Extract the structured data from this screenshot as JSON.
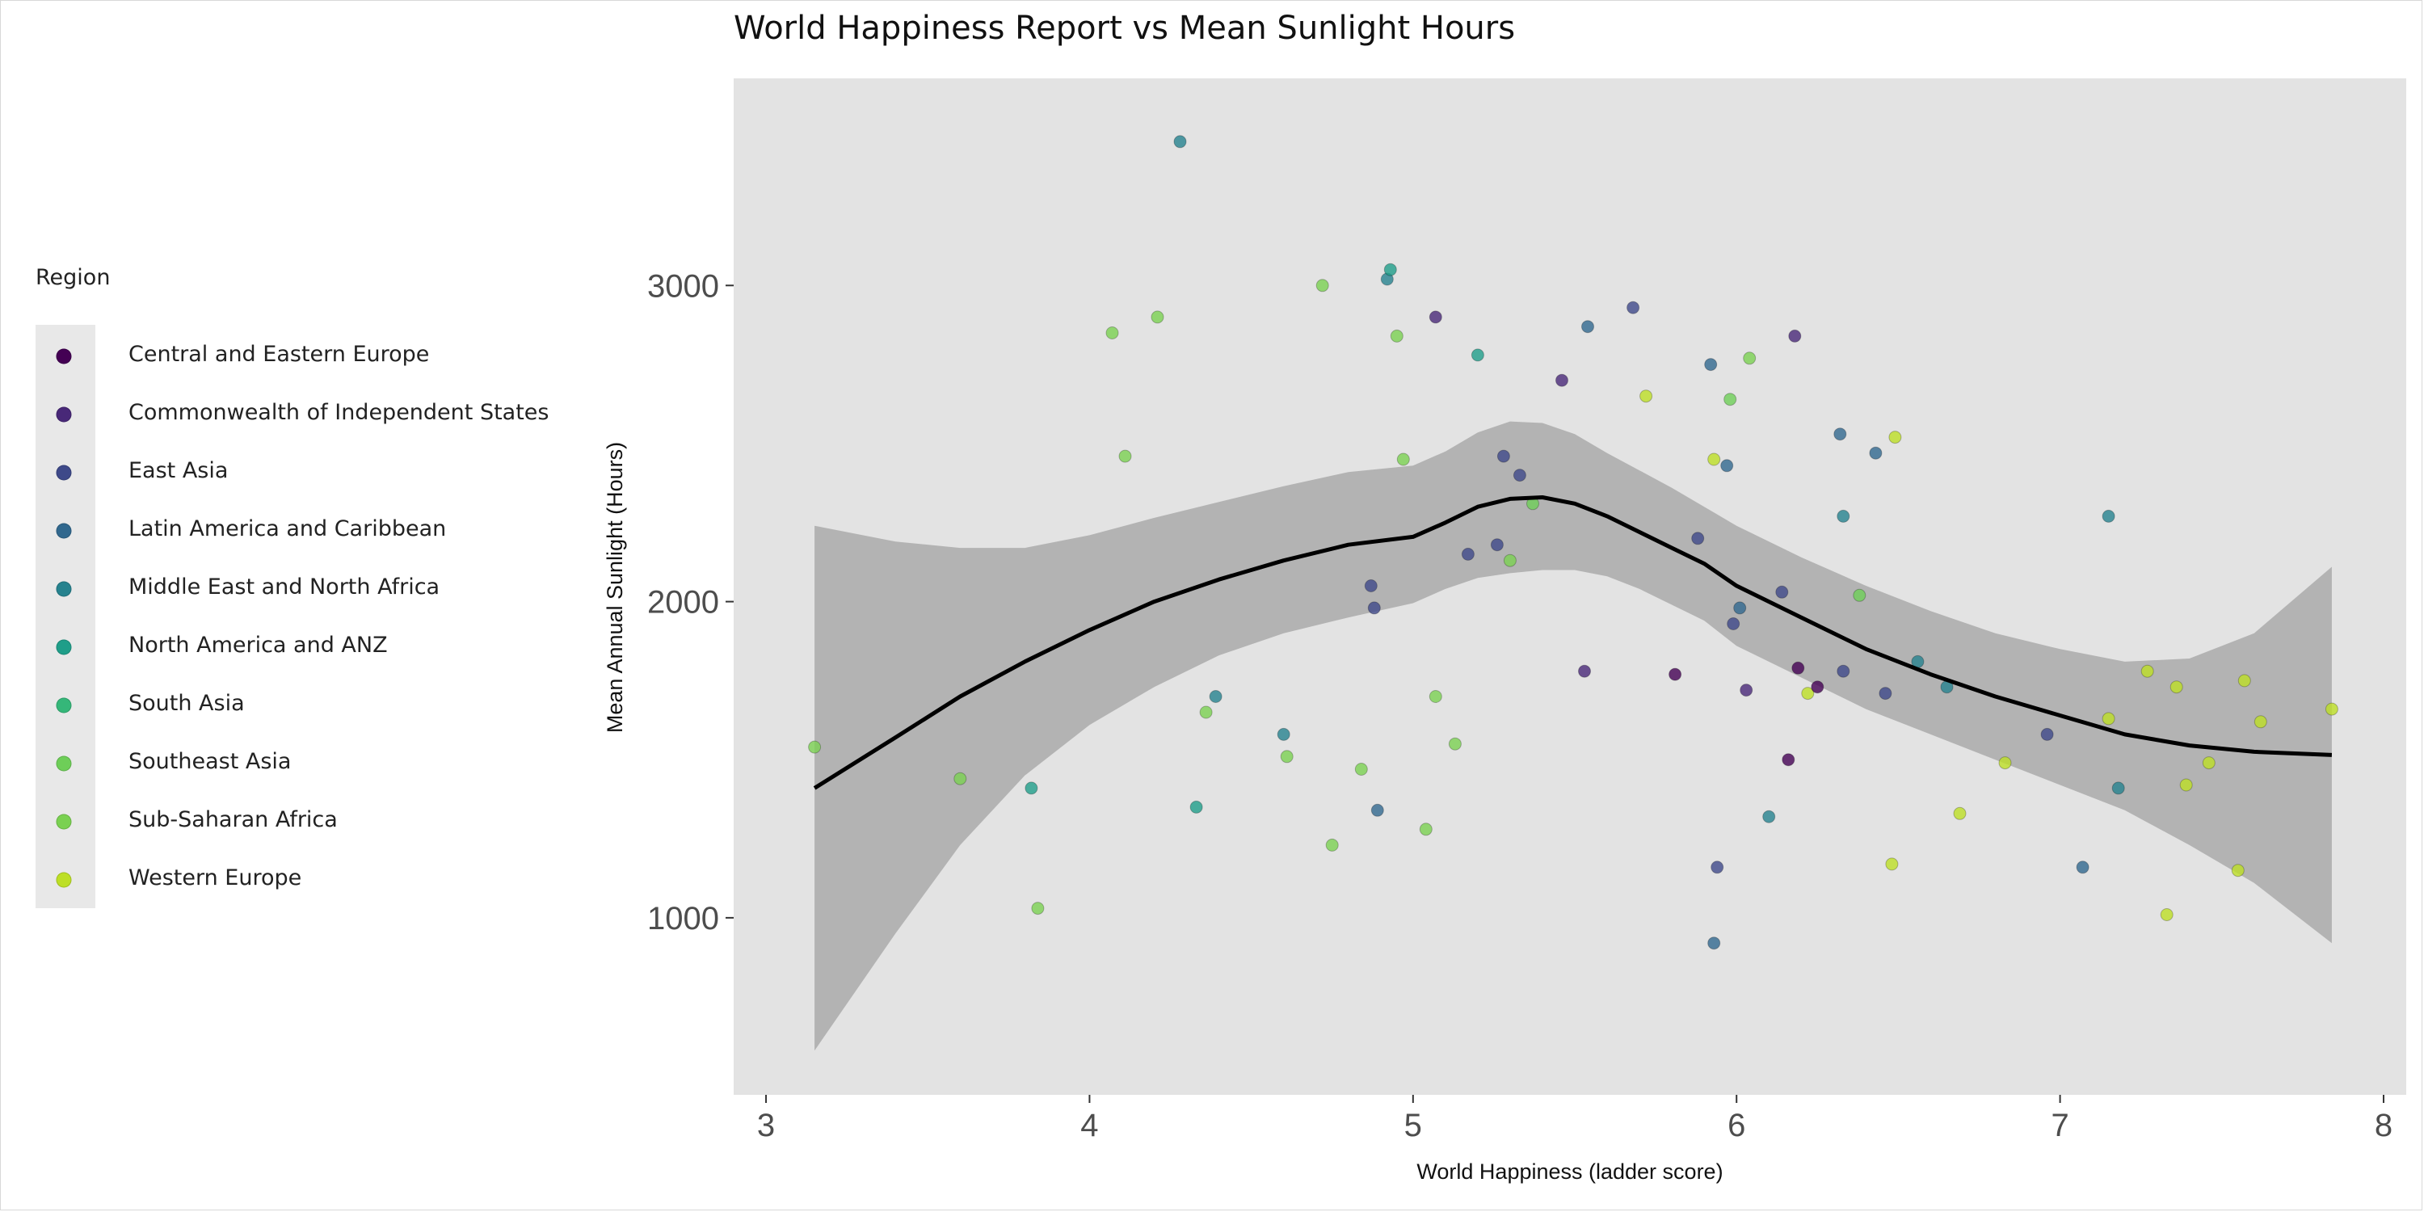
{
  "chart_data": {
    "type": "scatter",
    "title": "World Happiness Report vs Mean Sunlight Hours",
    "xlabel": "World Happiness (ladder score)",
    "ylabel": "Mean Annual Sunlight (Hours)",
    "xlim": [
      2.9,
      8.07
    ],
    "ylim": [
      440,
      3655
    ],
    "x_ticks": [
      3,
      4,
      5,
      6,
      7,
      8
    ],
    "y_ticks": [
      1000,
      2000,
      3000
    ],
    "grid": false,
    "legend": {
      "title": "Region",
      "position": "left",
      "entries": [
        "Central and Eastern Europe",
        "Commonwealth of Independent States",
        "East Asia",
        "Latin America and Caribbean",
        "Middle East and North Africa",
        "North America and ANZ",
        "South Asia",
        "Southeast Asia",
        "Sub-Saharan Africa",
        "Western Europe"
      ]
    },
    "colors": {
      "Central and Eastern Europe": "#440154",
      "Commonwealth of Independent States": "#482878",
      "East Asia": "#3e4989",
      "Latin America and Caribbean": "#31688e",
      "Middle East and North Africa": "#26828e",
      "North America and ANZ": "#1f9e89",
      "South Asia": "#35b779",
      "Southeast Asia": "#6ece58",
      "Sub-Saharan Africa": "#7ad151",
      "Western Europe": "#bddf26"
    },
    "panel_color": "#e3e3e3",
    "band_color": "#adadad",
    "smooth": {
      "x": [
        3.15,
        3.4,
        3.6,
        3.8,
        4.0,
        4.2,
        4.4,
        4.6,
        4.8,
        5.0,
        5.1,
        5.2,
        5.3,
        5.4,
        5.5,
        5.6,
        5.7,
        5.8,
        5.9,
        6.0,
        6.2,
        6.4,
        6.6,
        6.8,
        7.0,
        7.2,
        7.4,
        7.6,
        7.84
      ],
      "y": [
        1410,
        1570,
        1700,
        1810,
        1910,
        2000,
        2070,
        2130,
        2180,
        2205,
        2250,
        2300,
        2325,
        2330,
        2310,
        2270,
        2220,
        2170,
        2120,
        2050,
        1950,
        1850,
        1770,
        1700,
        1640,
        1580,
        1545,
        1525,
        1515
      ],
      "lower": [
        580,
        950,
        1230,
        1450,
        1610,
        1730,
        1830,
        1900,
        1950,
        1995,
        2040,
        2075,
        2090,
        2100,
        2100,
        2080,
        2040,
        1990,
        1940,
        1860,
        1760,
        1660,
        1580,
        1500,
        1420,
        1340,
        1230,
        1110,
        920
      ],
      "upper": [
        2240,
        2190,
        2170,
        2170,
        2210,
        2265,
        2315,
        2365,
        2410,
        2430,
        2475,
        2535,
        2570,
        2565,
        2530,
        2470,
        2415,
        2360,
        2300,
        2240,
        2140,
        2050,
        1970,
        1900,
        1850,
        1810,
        1820,
        1900,
        2110
      ]
    },
    "points": [
      {
        "x": 3.15,
        "y": 1540,
        "region": "Sub-Saharan Africa"
      },
      {
        "x": 3.6,
        "y": 1440,
        "region": "Sub-Saharan Africa"
      },
      {
        "x": 3.82,
        "y": 1410,
        "region": "North America and ANZ"
      },
      {
        "x": 3.84,
        "y": 1030,
        "region": "Sub-Saharan Africa"
      },
      {
        "x": 4.07,
        "y": 2850,
        "region": "Sub-Saharan Africa"
      },
      {
        "x": 4.11,
        "y": 2460,
        "region": "Sub-Saharan Africa"
      },
      {
        "x": 4.21,
        "y": 2900,
        "region": "Sub-Saharan Africa"
      },
      {
        "x": 4.28,
        "y": 3455,
        "region": "Middle East and North Africa"
      },
      {
        "x": 4.33,
        "y": 1350,
        "region": "North America and ANZ"
      },
      {
        "x": 4.36,
        "y": 1650,
        "region": "Sub-Saharan Africa"
      },
      {
        "x": 4.39,
        "y": 1700,
        "region": "Middle East and North Africa"
      },
      {
        "x": 4.6,
        "y": 1580,
        "region": "Middle East and North Africa"
      },
      {
        "x": 4.61,
        "y": 1510,
        "region": "Sub-Saharan Africa"
      },
      {
        "x": 4.72,
        "y": 3000,
        "region": "Sub-Saharan Africa"
      },
      {
        "x": 4.75,
        "y": 1230,
        "region": "Sub-Saharan Africa"
      },
      {
        "x": 4.84,
        "y": 1470,
        "region": "Sub-Saharan Africa"
      },
      {
        "x": 4.87,
        "y": 2050,
        "region": "East Asia"
      },
      {
        "x": 4.88,
        "y": 1980,
        "region": "East Asia"
      },
      {
        "x": 4.89,
        "y": 1340,
        "region": "Latin America and Caribbean"
      },
      {
        "x": 4.92,
        "y": 3020,
        "region": "Middle East and North Africa"
      },
      {
        "x": 4.93,
        "y": 3050,
        "region": "North America and ANZ"
      },
      {
        "x": 4.95,
        "y": 2840,
        "region": "Sub-Saharan Africa"
      },
      {
        "x": 4.97,
        "y": 2450,
        "region": "Sub-Saharan Africa"
      },
      {
        "x": 5.04,
        "y": 1280,
        "region": "Sub-Saharan Africa"
      },
      {
        "x": 5.07,
        "y": 2900,
        "region": "Commonwealth of Independent States"
      },
      {
        "x": 5.07,
        "y": 1700,
        "region": "Sub-Saharan Africa"
      },
      {
        "x": 5.13,
        "y": 1550,
        "region": "Sub-Saharan Africa"
      },
      {
        "x": 5.17,
        "y": 2150,
        "region": "East Asia"
      },
      {
        "x": 5.2,
        "y": 2780,
        "region": "North America and ANZ"
      },
      {
        "x": 5.26,
        "y": 2180,
        "region": "East Asia"
      },
      {
        "x": 5.28,
        "y": 2460,
        "region": "East Asia"
      },
      {
        "x": 5.3,
        "y": 2130,
        "region": "Sub-Saharan Africa"
      },
      {
        "x": 5.33,
        "y": 2400,
        "region": "East Asia"
      },
      {
        "x": 5.37,
        "y": 2310,
        "region": "Southeast Asia"
      },
      {
        "x": 5.46,
        "y": 2700,
        "region": "Commonwealth of Independent States"
      },
      {
        "x": 5.53,
        "y": 1780,
        "region": "Commonwealth of Independent States"
      },
      {
        "x": 5.54,
        "y": 2870,
        "region": "Latin America and Caribbean"
      },
      {
        "x": 5.68,
        "y": 2930,
        "region": "East Asia"
      },
      {
        "x": 5.72,
        "y": 2650,
        "region": "Western Europe"
      },
      {
        "x": 5.81,
        "y": 1770,
        "region": "Central and Eastern Europe"
      },
      {
        "x": 5.88,
        "y": 2200,
        "region": "East Asia"
      },
      {
        "x": 5.92,
        "y": 2750,
        "region": "Latin America and Caribbean"
      },
      {
        "x": 5.93,
        "y": 2450,
        "region": "Western Europe"
      },
      {
        "x": 5.93,
        "y": 920,
        "region": "Latin America and Caribbean"
      },
      {
        "x": 5.94,
        "y": 1160,
        "region": "East Asia"
      },
      {
        "x": 5.97,
        "y": 2430,
        "region": "Latin America and Caribbean"
      },
      {
        "x": 5.98,
        "y": 2640,
        "region": "Southeast Asia"
      },
      {
        "x": 5.99,
        "y": 1930,
        "region": "East Asia"
      },
      {
        "x": 6.01,
        "y": 1980,
        "region": "Latin America and Caribbean"
      },
      {
        "x": 6.03,
        "y": 1720,
        "region": "Commonwealth of Independent States"
      },
      {
        "x": 6.04,
        "y": 2770,
        "region": "Sub-Saharan Africa"
      },
      {
        "x": 6.1,
        "y": 1320,
        "region": "Middle East and North Africa"
      },
      {
        "x": 6.14,
        "y": 2030,
        "region": "East Asia"
      },
      {
        "x": 6.16,
        "y": 1500,
        "region": "Central and Eastern Europe"
      },
      {
        "x": 6.18,
        "y": 2840,
        "region": "Commonwealth of Independent States"
      },
      {
        "x": 6.19,
        "y": 1790,
        "region": "Central and Eastern Europe"
      },
      {
        "x": 6.22,
        "y": 1710,
        "region": "Western Europe"
      },
      {
        "x": 6.25,
        "y": 1730,
        "region": "Central and Eastern Europe"
      },
      {
        "x": 6.32,
        "y": 2530,
        "region": "Latin America and Caribbean"
      },
      {
        "x": 6.33,
        "y": 2270,
        "region": "Middle East and North Africa"
      },
      {
        "x": 6.33,
        "y": 1780,
        "region": "East Asia"
      },
      {
        "x": 6.38,
        "y": 2020,
        "region": "Southeast Asia"
      },
      {
        "x": 6.43,
        "y": 2470,
        "region": "Latin America and Caribbean"
      },
      {
        "x": 6.46,
        "y": 1710,
        "region": "East Asia"
      },
      {
        "x": 6.48,
        "y": 1170,
        "region": "Western Europe"
      },
      {
        "x": 6.49,
        "y": 2520,
        "region": "Western Europe"
      },
      {
        "x": 6.56,
        "y": 1810,
        "region": "Middle East and North Africa"
      },
      {
        "x": 6.65,
        "y": 1730,
        "region": "Middle East and North Africa"
      },
      {
        "x": 6.69,
        "y": 1330,
        "region": "Western Europe"
      },
      {
        "x": 6.83,
        "y": 1490,
        "region": "Western Europe"
      },
      {
        "x": 6.96,
        "y": 1580,
        "region": "East Asia"
      },
      {
        "x": 7.07,
        "y": 1160,
        "region": "Latin America and Caribbean"
      },
      {
        "x": 7.15,
        "y": 2270,
        "region": "Middle East and North Africa"
      },
      {
        "x": 7.15,
        "y": 1630,
        "region": "Western Europe"
      },
      {
        "x": 7.18,
        "y": 1410,
        "region": "Middle East and North Africa"
      },
      {
        "x": 7.27,
        "y": 1780,
        "region": "Western Europe"
      },
      {
        "x": 7.33,
        "y": 1010,
        "region": "Western Europe"
      },
      {
        "x": 7.36,
        "y": 1730,
        "region": "Western Europe"
      },
      {
        "x": 7.39,
        "y": 1420,
        "region": "Western Europe"
      },
      {
        "x": 7.46,
        "y": 1490,
        "region": "Western Europe"
      },
      {
        "x": 7.55,
        "y": 1150,
        "region": "Western Europe"
      },
      {
        "x": 7.57,
        "y": 1750,
        "region": "Western Europe"
      },
      {
        "x": 7.62,
        "y": 1620,
        "region": "Western Europe"
      },
      {
        "x": 7.84,
        "y": 1660,
        "region": "Western Europe"
      }
    ]
  }
}
